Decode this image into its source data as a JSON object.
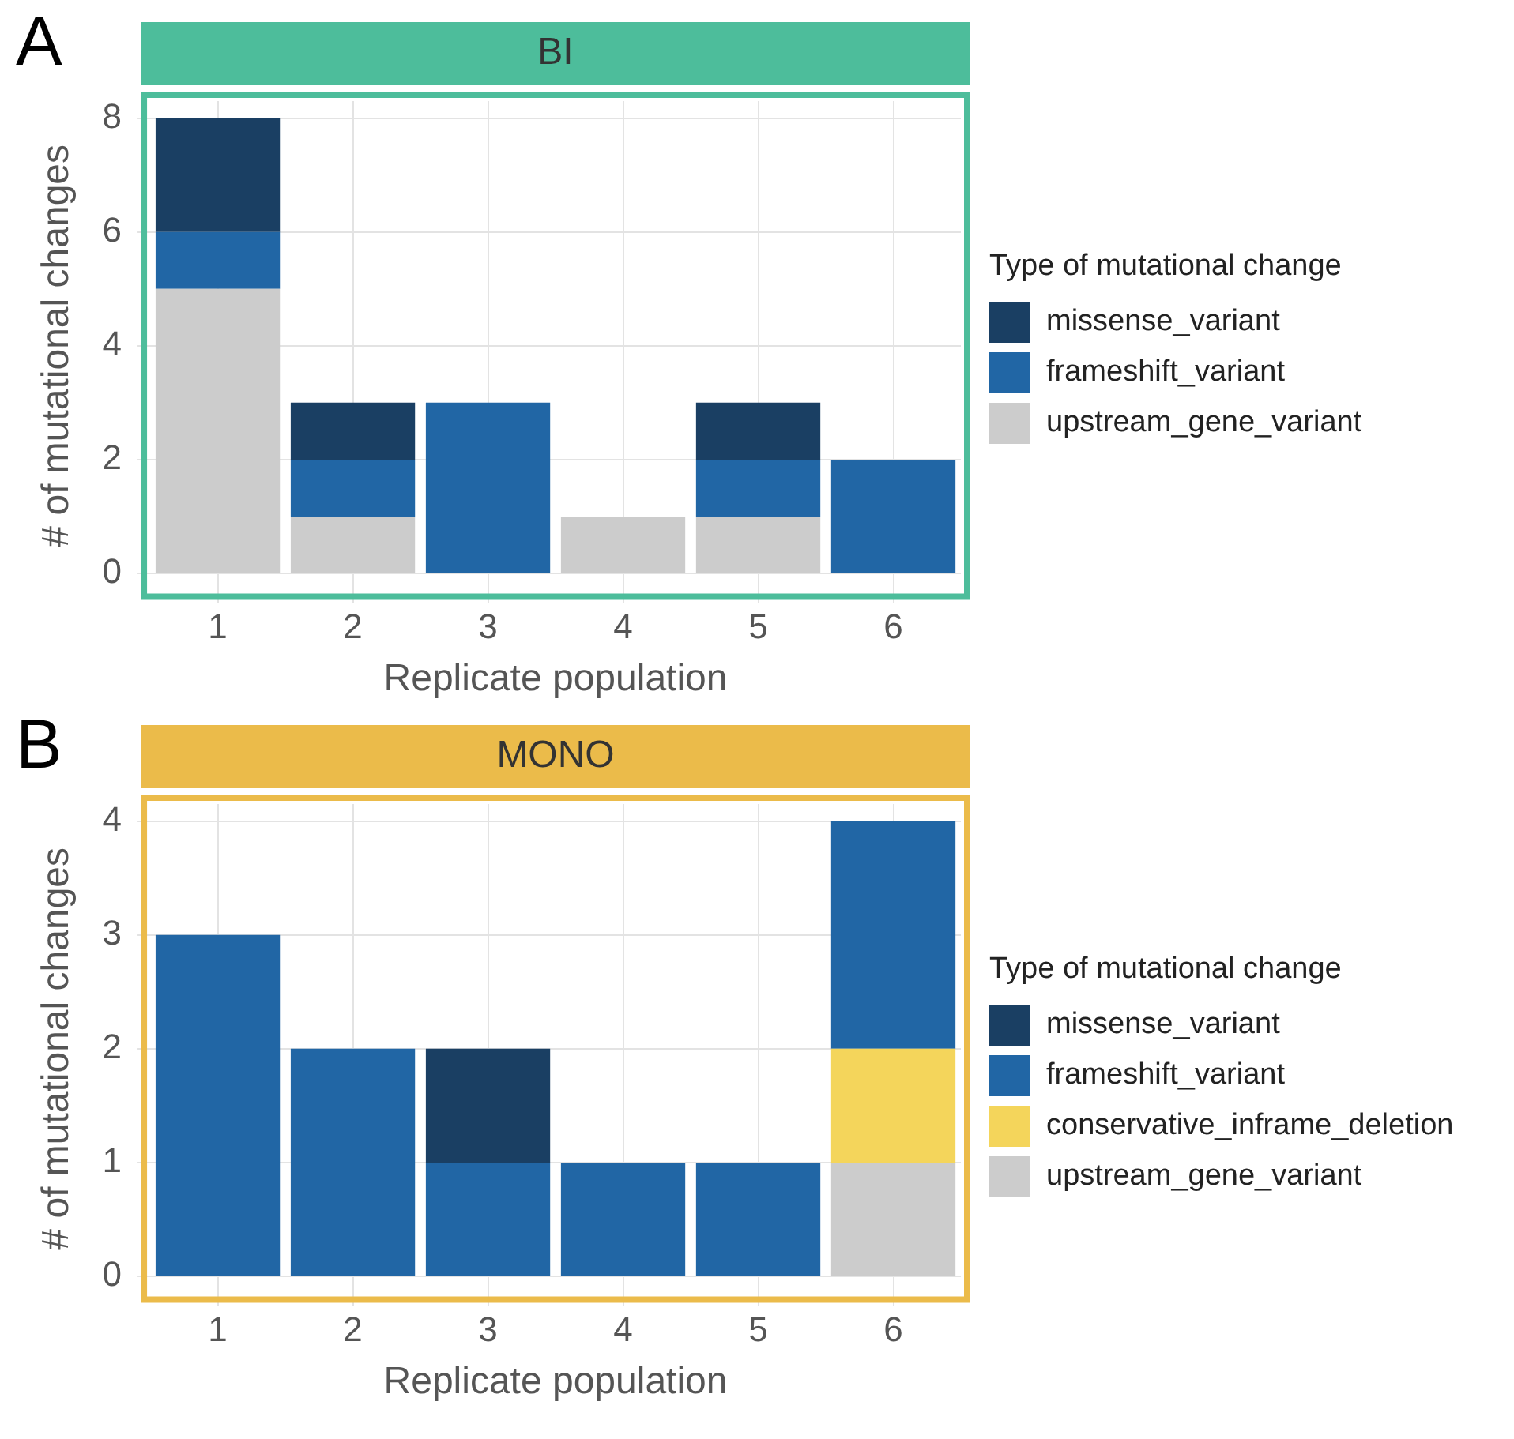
{
  "chart_data": [
    {
      "type": "bar",
      "title": "BI",
      "xlabel": "Replicate population",
      "ylabel": "# of mutational changes",
      "legend_title": "Type of mutational change",
      "legend": "right",
      "grid": true,
      "stacked": true,
      "annotations": [
        "A"
      ],
      "categories": [
        "1",
        "2",
        "3",
        "4",
        "5",
        "6"
      ],
      "ylim": [
        -0.3,
        8.3
      ],
      "yticks": [
        0,
        2,
        4,
        6,
        8
      ],
      "series": [
        {
          "name": "upstream_gene_variant",
          "color": "#cccccc",
          "values": [
            5,
            1,
            null,
            1,
            1,
            null
          ]
        },
        {
          "name": "frameshift_variant",
          "color": "#2166a5",
          "values": [
            1,
            1,
            3,
            null,
            1,
            2
          ]
        },
        {
          "name": "missense_variant",
          "color": "#1a3f63",
          "values": [
            2,
            1,
            null,
            null,
            1,
            null
          ]
        }
      ]
    },
    {
      "type": "bar",
      "title": "MONO",
      "xlabel": "Replicate population",
      "ylabel": "# of mutational changes",
      "legend_title": "Type of mutational change",
      "legend": "right",
      "grid": true,
      "stacked": true,
      "annotations": [
        "B"
      ],
      "categories": [
        "1",
        "2",
        "3",
        "4",
        "5",
        "6"
      ],
      "ylim": [
        -0.15,
        4.15
      ],
      "yticks": [
        0,
        1,
        2,
        3,
        4
      ],
      "series": [
        {
          "name": "upstream_gene_variant",
          "color": "#cccccc",
          "values": [
            null,
            null,
            null,
            null,
            null,
            1
          ]
        },
        {
          "name": "conservative_inframe_deletion",
          "color": "#f4d55b",
          "values": [
            null,
            null,
            null,
            null,
            null,
            1
          ]
        },
        {
          "name": "frameshift_variant",
          "color": "#2166a5",
          "values": [
            3,
            2,
            1,
            1,
            1,
            2
          ]
        },
        {
          "name": "missense_variant",
          "color": "#1a3f63",
          "values": [
            null,
            null,
            1,
            null,
            null,
            null
          ]
        }
      ]
    }
  ]
}
